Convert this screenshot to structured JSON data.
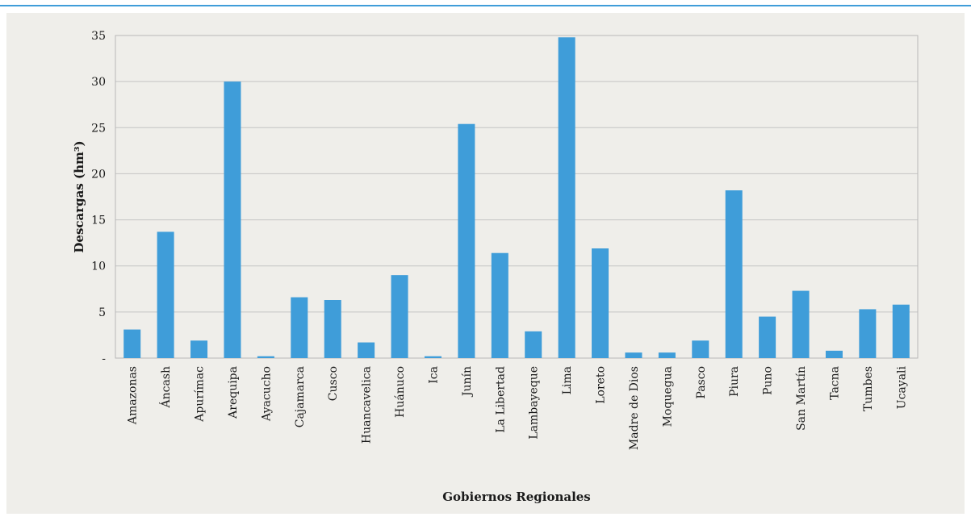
{
  "chart_data": {
    "type": "bar",
    "title": "",
    "xlabel": "Gobiernos Regionales",
    "ylabel": "Descargas (hm³)",
    "ylim": [
      0,
      35
    ],
    "yticks": [
      0,
      5,
      10,
      15,
      20,
      25,
      30,
      35
    ],
    "ytick_labels": [
      "-",
      "5",
      "10",
      "15",
      "20",
      "25",
      "30",
      "35"
    ],
    "grid": true,
    "legend": "none",
    "bar_color": "#3f9dd9",
    "categories": [
      "Amazonas",
      "Áncash",
      "Apurímac",
      "Arequipa",
      "Ayacucho",
      "Cajamarca",
      "Cusco",
      "Huancavelica",
      "Huánuco",
      "Ica",
      "Junín",
      "La Libertad",
      "Lambayeque",
      "Lima",
      "Loreto",
      "Madre de Dios",
      "Moquegua",
      "Pasco",
      "Piura",
      "Puno",
      "San Martín",
      "Tacna",
      "Tumbes",
      "Ucayali"
    ],
    "values": [
      3.1,
      13.7,
      1.9,
      30.0,
      0.2,
      6.6,
      6.3,
      1.7,
      9.0,
      0.2,
      25.4,
      11.4,
      2.9,
      34.8,
      11.9,
      0.6,
      0.6,
      1.9,
      18.2,
      4.5,
      7.3,
      0.8,
      5.3,
      5.8
    ]
  }
}
